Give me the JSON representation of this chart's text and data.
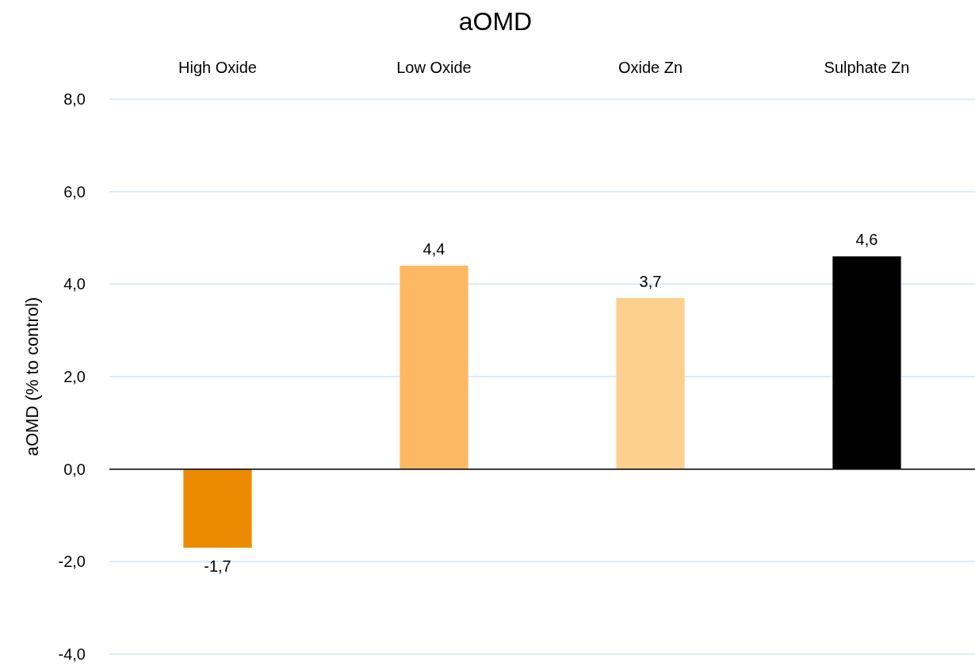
{
  "chart_data": {
    "type": "bar",
    "title": "aOMD",
    "ylabel": "aOMD (% to control)",
    "categories": [
      "High Oxide",
      "Low Oxide",
      "Oxide Zn",
      "Sulphate Zn"
    ],
    "values": [
      -1.7,
      4.4,
      3.7,
      4.6
    ],
    "colors": [
      "#ed8b00",
      "#fdb863",
      "#fdd08f",
      "#000000"
    ],
    "value_labels": [
      "-1,7",
      "4,4",
      "3,7",
      "4,6"
    ],
    "ylim": [
      -4,
      8
    ],
    "yticks": [
      {
        "value": -4,
        "label": "-4,0"
      },
      {
        "value": -2,
        "label": "-2,0"
      },
      {
        "value": 0,
        "label": "0,0"
      },
      {
        "value": 2,
        "label": "2,0"
      },
      {
        "value": 4,
        "label": "4,0"
      },
      {
        "value": 6,
        "label": "6,0"
      },
      {
        "value": 8,
        "label": "8,0"
      }
    ],
    "grid": "y"
  }
}
